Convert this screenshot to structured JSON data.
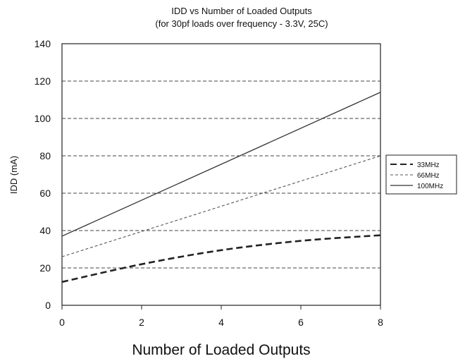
{
  "chart_data": {
    "type": "line",
    "title": "IDD vs Number of Loaded Outputs",
    "subtitle": "(for 30pf loads over frequency - 3.3V, 25C)",
    "xlabel": "Number of Loaded Outputs",
    "ylabel": "IDD (mA)",
    "xlim": [
      0,
      8
    ],
    "ylim": [
      0,
      140
    ],
    "xticks": [
      0,
      2,
      4,
      6,
      8
    ],
    "yticks": [
      0,
      20,
      40,
      60,
      80,
      100,
      120,
      140
    ],
    "grid": "horizontal dashed",
    "legend_position": "right",
    "series": [
      {
        "name": "33MHz",
        "style": "dashed-thick",
        "color": "#222222",
        "x": [
          0,
          2,
          4,
          6,
          8
        ],
        "values": [
          12.5,
          22,
          29.5,
          34.5,
          37.5
        ]
      },
      {
        "name": "66MHz",
        "style": "dashed-thin",
        "color": "#555555",
        "x": [
          0,
          8
        ],
        "values": [
          26,
          80
        ]
      },
      {
        "name": "100MHz",
        "style": "solid",
        "color": "#333333",
        "x": [
          0,
          8
        ],
        "values": [
          37,
          114
        ]
      }
    ]
  }
}
